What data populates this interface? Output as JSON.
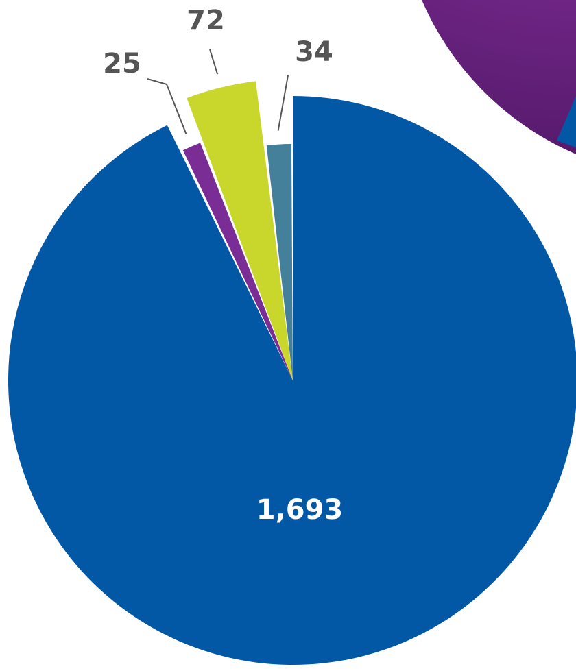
{
  "chart_data": {
    "type": "pie",
    "values": [
      1693,
      25,
      72,
      34
    ],
    "value_labels": [
      "1,693",
      "25",
      "72",
      "34"
    ],
    "colors": [
      "#0358a6",
      "#7a2d95",
      "#c9d62c",
      "#44809a"
    ]
  }
}
